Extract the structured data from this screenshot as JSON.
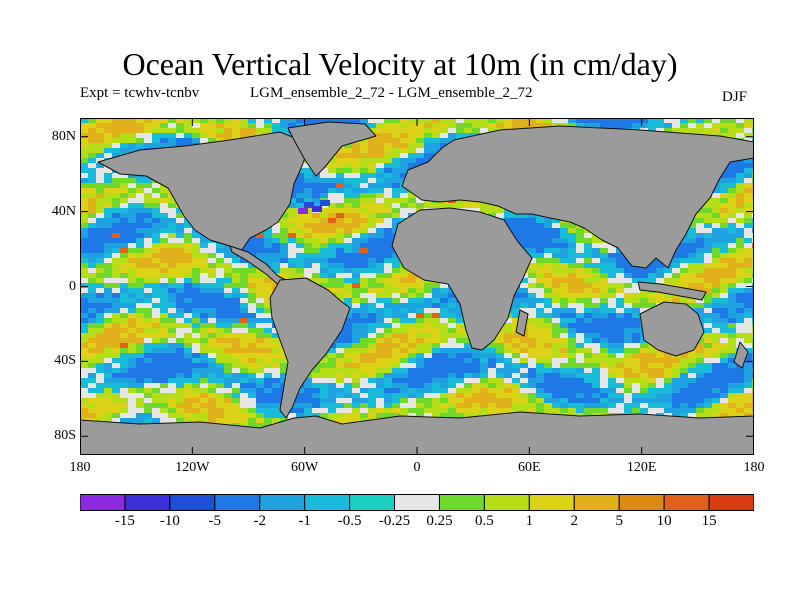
{
  "title": "Ocean Vertical Velocity at 10m (in cm/day)",
  "experiment": "Expt = tcwhv-tcnbv",
  "difference": "LGM_ensemble_2_72 - LGM_ensemble_2_72",
  "season": "DJF",
  "map": {
    "projection": "cylindrical equidistant",
    "lon_range": [
      -180,
      180
    ],
    "lat_range": [
      -90,
      90
    ],
    "land_color": "#9b9b9b",
    "y_ticks": [
      {
        "lat": 80,
        "label": "80N"
      },
      {
        "lat": 40,
        "label": "40N"
      },
      {
        "lat": 0,
        "label": "0"
      },
      {
        "lat": -40,
        "label": "40S"
      },
      {
        "lat": -80,
        "label": "80S"
      }
    ],
    "x_ticks": [
      {
        "lon": -180,
        "label": "180"
      },
      {
        "lon": -120,
        "label": "120W"
      },
      {
        "lon": -60,
        "label": "60W"
      },
      {
        "lon": 0,
        "label": "0"
      },
      {
        "lon": 60,
        "label": "60E"
      },
      {
        "lon": 120,
        "label": "120E"
      },
      {
        "lon": 180,
        "label": "180"
      }
    ]
  },
  "colorbar": {
    "levels": [
      "-15",
      "-10",
      "-5",
      "-2",
      "-1",
      "-0.5",
      "-0.25",
      "0.25",
      "0.5",
      "1",
      "2",
      "5",
      "10",
      "15"
    ],
    "colors": [
      "#8a2be2",
      "#3a2fd8",
      "#1f4fd8",
      "#1e78e6",
      "#1fa2e0",
      "#18bcd8",
      "#19cfc0",
      "#e6e6e6",
      "#6fd82a",
      "#b5de16",
      "#dcd318",
      "#e0b11a",
      "#de8a12",
      "#e0611a",
      "#d83a14"
    ]
  }
}
